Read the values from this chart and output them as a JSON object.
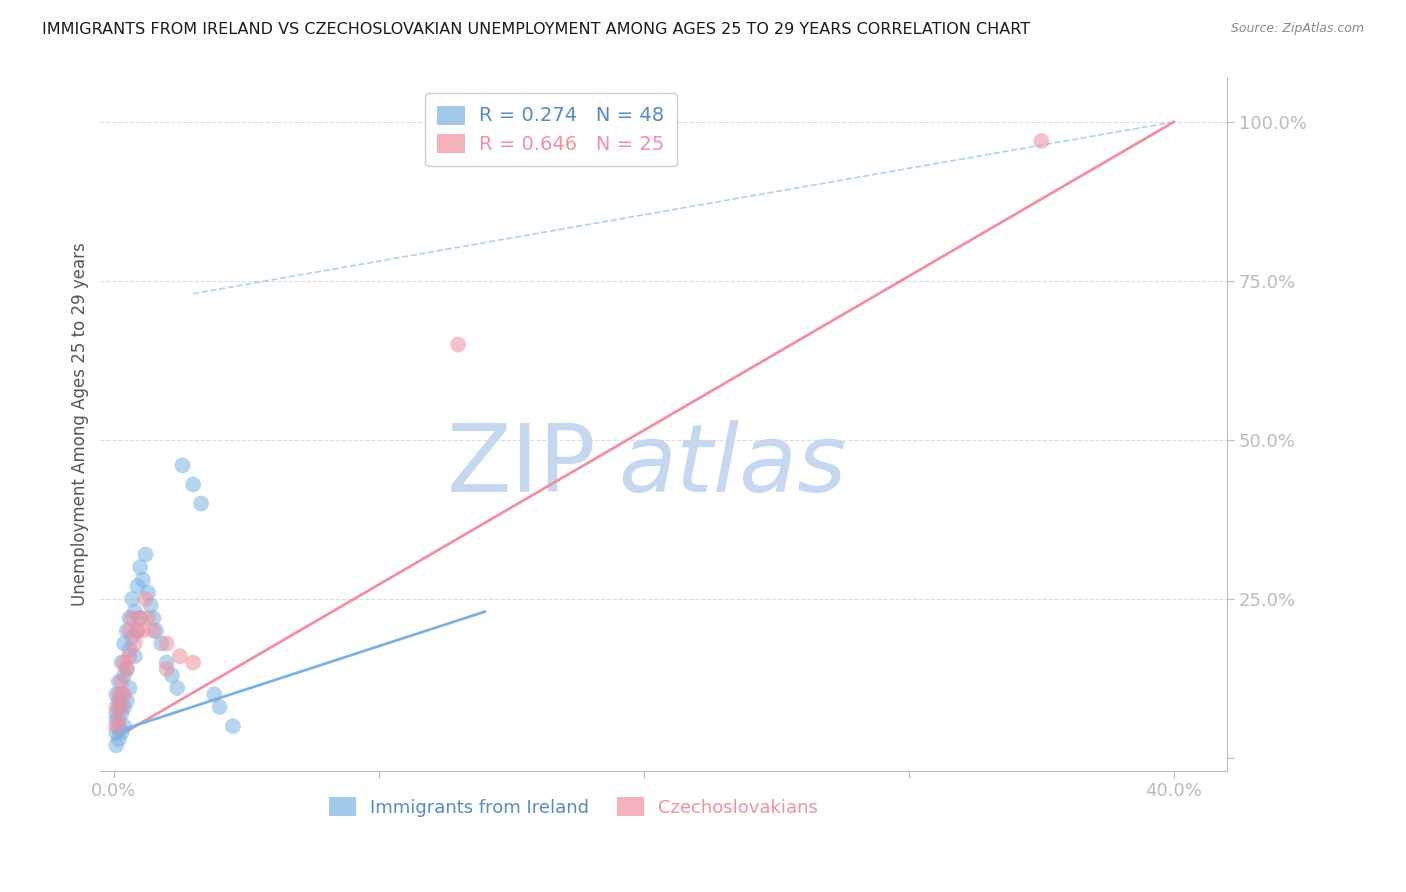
{
  "title": "IMMIGRANTS FROM IRELAND VS CZECHOSLOVAKIAN UNEMPLOYMENT AMONG AGES 25 TO 29 YEARS CORRELATION CHART",
  "source": "Source: ZipAtlas.com",
  "ylabel": "Unemployment Among Ages 25 to 29 years",
  "y_ticks_right": [
    0.0,
    0.25,
    0.5,
    0.75,
    1.0
  ],
  "y_tick_labels_right": [
    "",
    "25.0%",
    "50.0%",
    "75.0%",
    "100.0%"
  ],
  "x_ticks": [
    0.0,
    0.1,
    0.2,
    0.3,
    0.4
  ],
  "x_tick_labels": [
    "0.0%",
    "",
    "",
    "",
    "40.0%"
  ],
  "blue_scatter_x": [
    0.001,
    0.001,
    0.001,
    0.001,
    0.001,
    0.002,
    0.002,
    0.002,
    0.002,
    0.002,
    0.003,
    0.003,
    0.003,
    0.003,
    0.004,
    0.004,
    0.004,
    0.004,
    0.005,
    0.005,
    0.005,
    0.006,
    0.006,
    0.006,
    0.007,
    0.007,
    0.008,
    0.008,
    0.009,
    0.009,
    0.01,
    0.01,
    0.011,
    0.012,
    0.013,
    0.014,
    0.015,
    0.016,
    0.018,
    0.02,
    0.022,
    0.024,
    0.026,
    0.03,
    0.033,
    0.038,
    0.04,
    0.045
  ],
  "blue_scatter_y": [
    0.04,
    0.06,
    0.07,
    0.1,
    0.02,
    0.08,
    0.12,
    0.05,
    0.03,
    0.09,
    0.15,
    0.1,
    0.07,
    0.04,
    0.18,
    0.13,
    0.08,
    0.05,
    0.2,
    0.14,
    0.09,
    0.22,
    0.17,
    0.11,
    0.25,
    0.19,
    0.23,
    0.16,
    0.27,
    0.2,
    0.3,
    0.22,
    0.28,
    0.32,
    0.26,
    0.24,
    0.22,
    0.2,
    0.18,
    0.15,
    0.13,
    0.11,
    0.46,
    0.43,
    0.4,
    0.1,
    0.08,
    0.05
  ],
  "pink_scatter_x": [
    0.001,
    0.001,
    0.002,
    0.002,
    0.003,
    0.003,
    0.004,
    0.004,
    0.005,
    0.006,
    0.006,
    0.007,
    0.008,
    0.009,
    0.01,
    0.011,
    0.012,
    0.013,
    0.015,
    0.02,
    0.025,
    0.03,
    0.13,
    0.35,
    0.02
  ],
  "pink_scatter_y": [
    0.05,
    0.08,
    0.1,
    0.06,
    0.12,
    0.08,
    0.15,
    0.1,
    0.14,
    0.2,
    0.16,
    0.22,
    0.18,
    0.2,
    0.22,
    0.2,
    0.25,
    0.22,
    0.2,
    0.18,
    0.16,
    0.15,
    0.65,
    0.97,
    0.14
  ],
  "blue_line_x": [
    0.0,
    0.14
  ],
  "blue_line_y": [
    0.04,
    0.23
  ],
  "pink_line_x": [
    0.0,
    0.4
  ],
  "pink_line_y": [
    0.03,
    1.0
  ],
  "diag_line_x": [
    0.03,
    0.4
  ],
  "diag_line_y": [
    0.73,
    1.0
  ],
  "watermark_text": "ZIP",
  "watermark_text2": "atlas",
  "watermark_color": "#c5d8f0",
  "bg_color": "#ffffff",
  "grid_color": "#dddddd",
  "title_color": "#1a1a1a",
  "blue_color": "#7ab3e0",
  "pink_color": "#f090a0",
  "axis_label_color": "#5588cc",
  "xlim": [
    -0.005,
    0.42
  ],
  "ylim": [
    -0.02,
    1.07
  ]
}
